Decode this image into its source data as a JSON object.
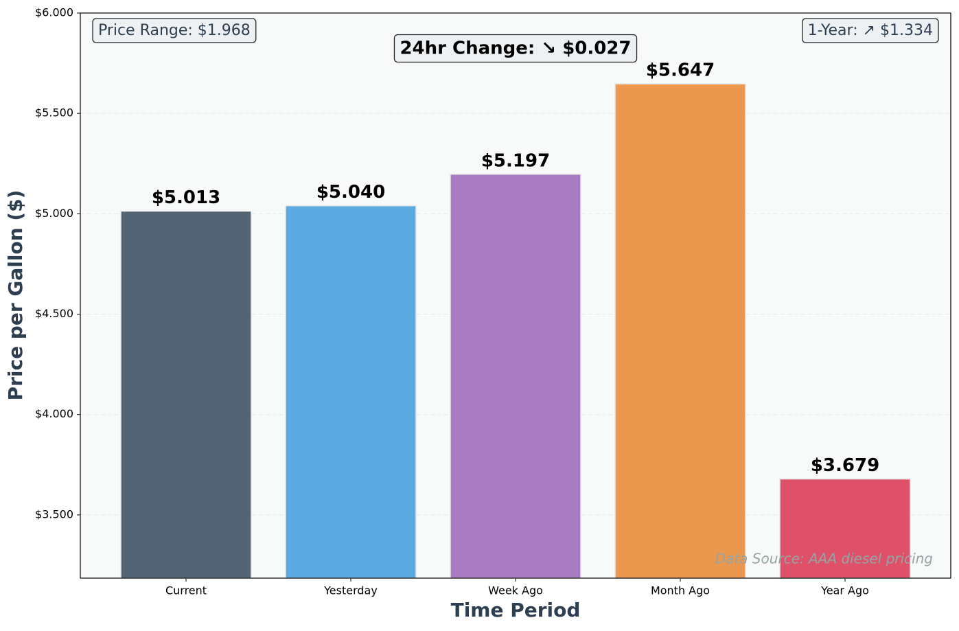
{
  "chart_data": {
    "type": "bar",
    "categories": [
      "Current",
      "Yesterday",
      "Week Ago",
      "Month Ago",
      "Year Ago"
    ],
    "values": [
      5.013,
      5.04,
      5.197,
      5.647,
      3.679
    ],
    "value_labels": [
      "$5.013",
      "$5.040",
      "$5.197",
      "$5.647",
      "$3.679"
    ],
    "colors": [
      "#536474",
      "#5baae1",
      "#a97bc3",
      "#eb984e",
      "#df5169"
    ],
    "xlabel": "Time Period",
    "ylabel": "Price per Gallon ($)",
    "ylim": [
      3.185,
      6.0
    ],
    "yticks": [
      {
        "value": 3.5,
        "label": "$3.500"
      },
      {
        "value": 4.0,
        "label": "$4.000"
      },
      {
        "value": 4.5,
        "label": "$4.500"
      },
      {
        "value": 5.0,
        "label": "$5.000"
      },
      {
        "value": 5.5,
        "label": "$5.500"
      },
      {
        "value": 6.0,
        "label": "$6.000"
      }
    ],
    "grid": true,
    "annotations": [
      "Price Range: $1.968",
      "24hr Change: ↘ $0.027",
      "1-Year: ↗ $1.334",
      "Data Source: AAA diesel pricing"
    ]
  }
}
